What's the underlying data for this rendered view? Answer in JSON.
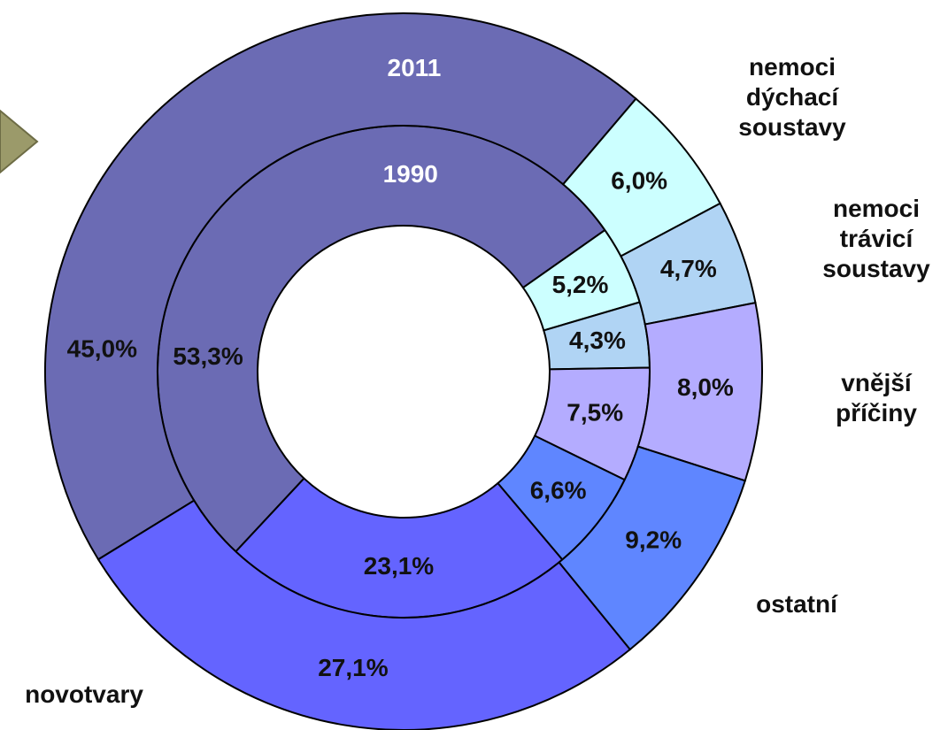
{
  "chart_data": {
    "type": "donut",
    "categories": [
      null,
      "nemoci dýchací soustavy",
      "nemoci trávicí soustavy",
      "vnější příčiny",
      "ostatní",
      "novotvary"
    ],
    "colors": [
      "#6b6bb4",
      "#ccffff",
      "#b0d4f4",
      "#b4acff",
      "#5f86ff",
      "#6464ff"
    ],
    "series": [
      {
        "name": "1990",
        "values": [
          53.3,
          5.2,
          4.3,
          7.5,
          6.6,
          23.1
        ],
        "value_labels": [
          "53,3%",
          "5,2%",
          "4,3%",
          "7,5%",
          "6,6%",
          "23,1%"
        ]
      },
      {
        "name": "2011",
        "values": [
          45.0,
          6.0,
          4.7,
          8.0,
          9.2,
          27.1
        ],
        "value_labels": [
          "45,0%",
          "6,0%",
          "4,7%",
          "8,0%",
          "9,2%",
          "27,1%"
        ]
      }
    ]
  }
}
